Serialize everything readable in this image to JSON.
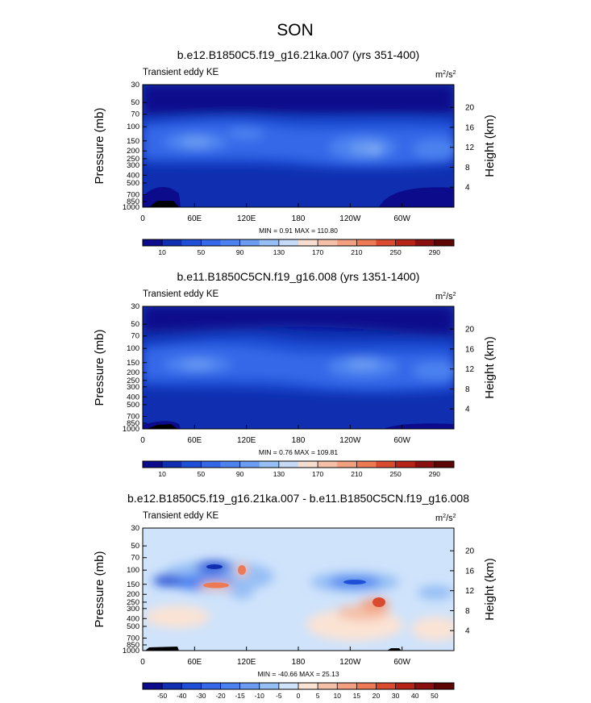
{
  "figure": {
    "title": "SON"
  },
  "chart_data": [
    {
      "type": "heatmap",
      "title": "b.e12.B1850C5.f19_g16.21ka.007 (yrs 351-400)",
      "subtitle_left": "Transient eddy KE",
      "units": "m²/s²",
      "ylabel": "Pressure (mb)",
      "ylabel_right": "Height (km)",
      "x_ticks": [
        "0",
        "60E",
        "120E",
        "180",
        "120W",
        "60W"
      ],
      "y_ticks": [
        "30",
        "50",
        "70",
        "100",
        "150",
        "200",
        "250",
        "300",
        "400",
        "500",
        "700",
        "850",
        "1000"
      ],
      "y_ticks_right": [
        "20",
        "16",
        "12",
        "8",
        "4"
      ],
      "stats": "MIN =   0.91  MAX = 110.80",
      "colorbar_labels": [
        "10",
        "50",
        "90",
        "130",
        "170",
        "210",
        "250",
        "290"
      ],
      "colors": [
        "#0b0b8c",
        "#0f2fb0",
        "#1f4fd6",
        "#3568e8",
        "#4c82f0",
        "#6c9cf2",
        "#96bff5",
        "#c4daf7",
        "#f7ddd0",
        "#f5c0a8",
        "#f2a080",
        "#ec7a55",
        "#d94a2e",
        "#b62418",
        "#8a0f0f",
        "#5e0606"
      ]
    },
    {
      "type": "heatmap",
      "title": "b.e11.B1850C5CN.f19_g16.008 (yrs 1351-1400)",
      "subtitle_left": "Transient eddy KE",
      "units": "m²/s²",
      "ylabel": "Pressure (mb)",
      "ylabel_right": "Height (km)",
      "x_ticks": [
        "0",
        "60E",
        "120E",
        "180",
        "120W",
        "60W"
      ],
      "y_ticks": [
        "30",
        "50",
        "70",
        "100",
        "150",
        "200",
        "250",
        "300",
        "400",
        "500",
        "700",
        "850",
        "1000"
      ],
      "y_ticks_right": [
        "20",
        "16",
        "12",
        "8",
        "4"
      ],
      "stats": "MIN =   0.76  MAX = 109.81",
      "colorbar_labels": [
        "10",
        "50",
        "90",
        "130",
        "170",
        "210",
        "250",
        "290"
      ],
      "colors": [
        "#0b0b8c",
        "#0f2fb0",
        "#1f4fd6",
        "#3568e8",
        "#4c82f0",
        "#6c9cf2",
        "#96bff5",
        "#c4daf7",
        "#f7ddd0",
        "#f5c0a8",
        "#f2a080",
        "#ec7a55",
        "#d94a2e",
        "#b62418",
        "#8a0f0f",
        "#5e0606"
      ]
    },
    {
      "type": "heatmap",
      "title": "b.e12.B1850C5.f19_g16.21ka.007 - b.e11.B1850C5CN.f19_g16.008",
      "subtitle_left": "Transient eddy KE",
      "units": "m²/s²",
      "ylabel": "Pressure (mb)",
      "ylabel_right": "Height (km)",
      "x_ticks": [
        "0",
        "60E",
        "120E",
        "180",
        "120W",
        "60W"
      ],
      "y_ticks": [
        "30",
        "50",
        "70",
        "100",
        "150",
        "200",
        "250",
        "300",
        "400",
        "500",
        "700",
        "850",
        "1000"
      ],
      "y_ticks_right": [
        "20",
        "16",
        "12",
        "8",
        "4"
      ],
      "stats": "MIN = -40.66  MAX =  25.13",
      "colorbar_labels": [
        "-50",
        "-40",
        "-30",
        "-20",
        "-15",
        "-10",
        "-5",
        "0",
        "5",
        "10",
        "15",
        "20",
        "30",
        "40",
        "50"
      ],
      "colors": [
        "#0b0b8c",
        "#0f2fb0",
        "#1f4fd6",
        "#3568e8",
        "#4c82f0",
        "#6c9cf2",
        "#96bff5",
        "#cfe3fb",
        "#fbe3d4",
        "#f5c0a8",
        "#f2a080",
        "#ec7a55",
        "#d94a2e",
        "#b62418",
        "#8a0f0f",
        "#5e0606"
      ]
    }
  ]
}
